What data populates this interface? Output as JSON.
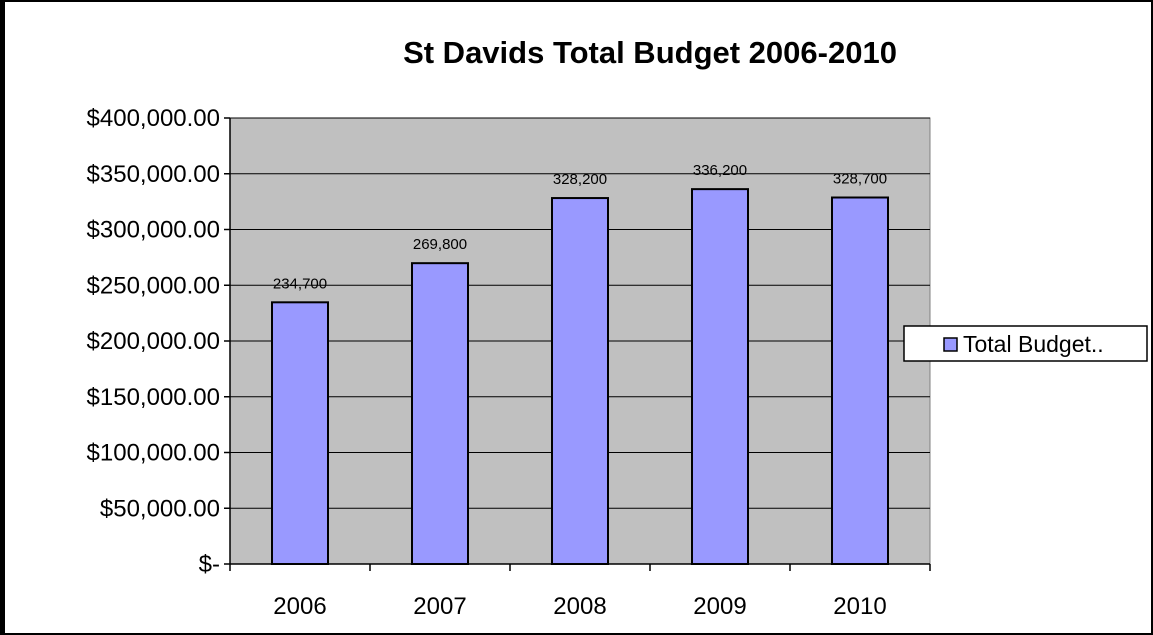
{
  "chart_data": {
    "type": "bar",
    "title": "St Davids Total Budget 2006-2010",
    "categories": [
      "2006",
      "2007",
      "2008",
      "2009",
      "2010"
    ],
    "series": [
      {
        "name": "Total Budget..",
        "values": [
          234700,
          269800,
          328200,
          336200,
          328700
        ],
        "data_labels": [
          "234,700",
          "269,800",
          "328,200",
          "336,200",
          "328,700"
        ],
        "color": "#9999ff"
      }
    ],
    "y_ticks": [
      "$-",
      "$50,000.00",
      "$100,000.00",
      "$150,000.00",
      "$200,000.00",
      "$250,000.00",
      "$300,000.00",
      "$350,000.00",
      "$400,000.00"
    ],
    "ylim": [
      0,
      400000
    ],
    "y_step": 50000,
    "xlabel": "",
    "ylabel": "",
    "grid": true,
    "legend_position": "right",
    "colors": {
      "plot_background": "#c0c0c0",
      "bar_fill": "#9999ff",
      "bar_stroke": "#000000",
      "grid": "#000000"
    }
  }
}
